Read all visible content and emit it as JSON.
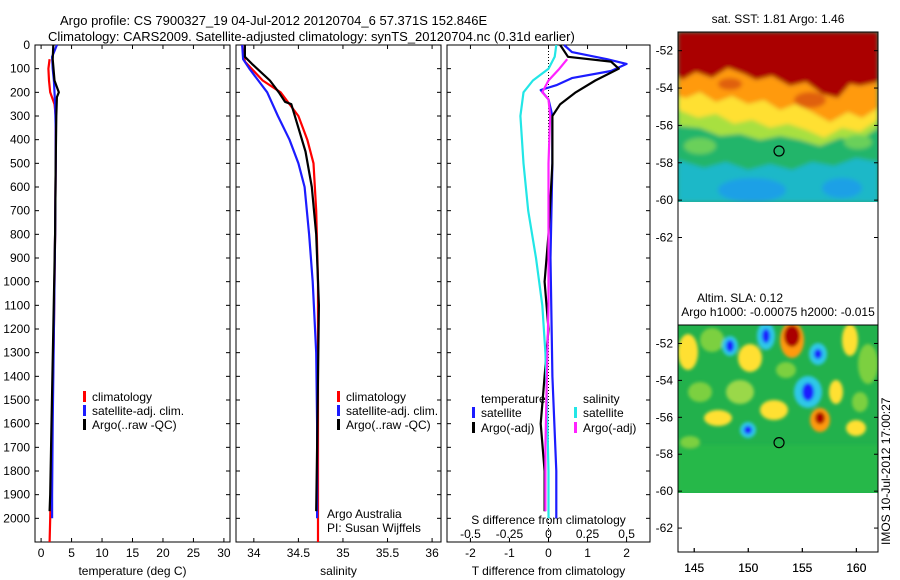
{
  "header": {
    "title_line1": "Argo profile: CS 7900327_19 04-Jul-2012 20120704_6 57.371S 152.846E",
    "title_line2": "Climatology: CARS2009. Satellite-adjusted climatology: synTS_20120704.nc (0.31d earlier)"
  },
  "colors": {
    "red": "#ff0000",
    "blue": "#1c1cff",
    "black": "#000000",
    "cyan": "#22e6e6",
    "magenta": "#ff22ff"
  },
  "chart_data": [
    {
      "id": "temperature",
      "type": "line",
      "xlabel": "temperature (deg C)",
      "ylabel": "",
      "xlim": [
        -1,
        31
      ],
      "ylim": [
        2100,
        0
      ],
      "xticks": [
        0,
        5,
        10,
        15,
        20,
        25,
        30
      ],
      "yticks": [
        0,
        100,
        200,
        300,
        400,
        500,
        600,
        700,
        800,
        900,
        1000,
        1100,
        1200,
        1300,
        1400,
        1500,
        1600,
        1700,
        1800,
        1900,
        2000
      ],
      "legend": [
        "climatology",
        "satellite-adj. clim.",
        "Argo(..raw -QC)"
      ],
      "series": [
        {
          "name": "climatology",
          "color": "red",
          "points": [
            [
              1.4,
              60
            ],
            [
              1.2,
              100
            ],
            [
              1.3,
              150
            ],
            [
              1.5,
              200
            ],
            [
              2.2,
              250
            ],
            [
              2.4,
              300
            ],
            [
              2.4,
              500
            ],
            [
              2.3,
              800
            ],
            [
              2.1,
              1200
            ],
            [
              1.8,
              1600
            ],
            [
              1.5,
              2000
            ],
            [
              1.4,
              2100
            ]
          ]
        },
        {
          "name": "satellite-adj. clim.",
          "color": "blue",
          "points": [
            [
              2.6,
              0
            ],
            [
              1.8,
              50
            ],
            [
              1.9,
              100
            ],
            [
              2.1,
              150
            ],
            [
              2.3,
              250
            ],
            [
              2.4,
              350
            ],
            [
              2.4,
              500
            ],
            [
              2.3,
              800
            ],
            [
              2.1,
              1200
            ],
            [
              1.9,
              1600
            ],
            [
              1.8,
              1900
            ],
            [
              1.8,
              2000
            ]
          ]
        },
        {
          "name": "Argo(..raw -QC)",
          "color": "black",
          "points": [
            [
              2.0,
              0
            ],
            [
              1.9,
              60
            ],
            [
              2.2,
              150
            ],
            [
              2.9,
              200
            ],
            [
              2.6,
              220
            ],
            [
              2.5,
              300
            ],
            [
              2.4,
              500
            ],
            [
              2.3,
              800
            ],
            [
              2.0,
              1200
            ],
            [
              1.7,
              1600
            ],
            [
              1.5,
              1900
            ],
            [
              1.4,
              1970
            ]
          ]
        }
      ]
    },
    {
      "id": "salinity",
      "type": "line",
      "xlabel": "salinity",
      "ylabel": "",
      "xlim": [
        33.8,
        36.1
      ],
      "ylim": [
        2100,
        0
      ],
      "xticks": [
        34,
        34.5,
        35,
        35.5,
        36
      ],
      "xticklabels": [
        "34",
        "34.5",
        "35",
        "35.5",
        "36"
      ],
      "legend": [
        "climatology",
        "satellite-adj. clim.",
        "Argo(..raw -QC)"
      ],
      "annotation": [
        "Argo Australia",
        "PI: Susan Wijffels"
      ],
      "series": [
        {
          "name": "climatology",
          "color": "red",
          "points": [
            [
              33.87,
              0
            ],
            [
              33.9,
              70
            ],
            [
              34.1,
              150
            ],
            [
              34.3,
              200
            ],
            [
              34.5,
              300
            ],
            [
              34.6,
              400
            ],
            [
              34.67,
              500
            ],
            [
              34.7,
              700
            ],
            [
              34.72,
              1000
            ],
            [
              34.72,
              1500
            ],
            [
              34.72,
              2100
            ]
          ]
        },
        {
          "name": "satellite-adj. clim.",
          "color": "blue",
          "points": [
            [
              33.87,
              0
            ],
            [
              33.88,
              60
            ],
            [
              33.95,
              100
            ],
            [
              34.05,
              150
            ],
            [
              34.15,
              200
            ],
            [
              34.27,
              300
            ],
            [
              34.4,
              400
            ],
            [
              34.5,
              500
            ],
            [
              34.57,
              600
            ],
            [
              34.62,
              800
            ],
            [
              34.66,
              1000
            ],
            [
              34.7,
              1300
            ],
            [
              34.71,
              1600
            ],
            [
              34.71,
              2000
            ]
          ]
        },
        {
          "name": "Argo(..raw -QC)",
          "color": "black",
          "points": [
            [
              33.9,
              0
            ],
            [
              33.9,
              50
            ],
            [
              33.98,
              80
            ],
            [
              34.18,
              150
            ],
            [
              34.28,
              200
            ],
            [
              34.35,
              240
            ],
            [
              34.42,
              250
            ],
            [
              34.5,
              350
            ],
            [
              34.58,
              450
            ],
            [
              34.65,
              600
            ],
            [
              34.7,
              800
            ],
            [
              34.73,
              1100
            ],
            [
              34.72,
              1400
            ],
            [
              34.71,
              1700
            ],
            [
              34.7,
              1970
            ]
          ]
        }
      ]
    },
    {
      "id": "difference",
      "type": "line",
      "xlabel": "T difference from climatology",
      "x2label": "S difference from climatology",
      "xlim": [
        -2.6,
        2.6
      ],
      "x2lim": [
        -0.65,
        0.65
      ],
      "ylim": [
        2100,
        0
      ],
      "xticks": [
        -2,
        -1,
        0,
        1,
        2
      ],
      "x2ticks": [
        -0.5,
        -0.25,
        0,
        0.25,
        0.5
      ],
      "x2ticklabels": [
        "-0.5",
        "-0.25",
        "0",
        "0.25",
        "0.5"
      ],
      "legend_temperature_title": "temperature",
      "legend_salinity_title": "salinity",
      "legend": [
        {
          "label": "satellite",
          "color": "blue"
        },
        {
          "label": "Argo(-adj)",
          "color": "black"
        },
        {
          "label": "satellite",
          "color": "cyan"
        },
        {
          "label": "Argo(-adj)",
          "color": "magenta"
        }
      ],
      "series": [
        {
          "name": "temperature satellite",
          "axis": "T",
          "color": "blue",
          "points": [
            [
              0.4,
              0
            ],
            [
              0.6,
              30
            ],
            [
              1.5,
              60
            ],
            [
              2.0,
              80
            ],
            [
              1.6,
              110
            ],
            [
              0.6,
              140
            ],
            [
              0.2,
              170
            ],
            [
              -0.2,
              190
            ],
            [
              0.0,
              230
            ],
            [
              0.1,
              300
            ],
            [
              0.1,
              500
            ],
            [
              0.05,
              900
            ],
            [
              0.1,
              1400
            ],
            [
              0.2,
              1800
            ],
            [
              0.2,
              2000
            ]
          ]
        },
        {
          "name": "temperature Argo(-adj)",
          "color": "black",
          "axis": "T",
          "points": [
            [
              0.3,
              0
            ],
            [
              0.5,
              50
            ],
            [
              1.6,
              70
            ],
            [
              1.8,
              100
            ],
            [
              1.2,
              150
            ],
            [
              0.7,
              200
            ],
            [
              0.3,
              250
            ],
            [
              0.1,
              300
            ],
            [
              0.1,
              500
            ],
            [
              0.0,
              800
            ],
            [
              -0.1,
              1000
            ],
            [
              0.0,
              1200
            ],
            [
              -0.1,
              1400
            ],
            [
              -0.2,
              1600
            ],
            [
              -0.1,
              1800
            ],
            [
              -0.1,
              1970
            ]
          ]
        },
        {
          "name": "salinity satellite",
          "color": "cyan",
          "axis": "S",
          "points": [
            [
              0.05,
              0
            ],
            [
              0.04,
              50
            ],
            [
              0.0,
              100
            ],
            [
              -0.1,
              150
            ],
            [
              -0.16,
              200
            ],
            [
              -0.18,
              300
            ],
            [
              -0.16,
              500
            ],
            [
              -0.13,
              700
            ],
            [
              -0.08,
              900
            ],
            [
              -0.04,
              1100
            ],
            [
              -0.02,
              1300
            ],
            [
              -0.01,
              1500
            ],
            [
              0.0,
              1800
            ],
            [
              0.0,
              2000
            ]
          ]
        },
        {
          "name": "salinity Argo(-adj)",
          "color": "magenta",
          "axis": "S",
          "points": [
            [
              0.12,
              60
            ],
            [
              0.07,
              100
            ],
            [
              0.0,
              150
            ],
            [
              -0.04,
              200
            ],
            [
              0.0,
              230
            ],
            [
              0.01,
              300
            ],
            [
              0.0,
              500
            ],
            [
              0.0,
              800
            ],
            [
              0.0,
              1100
            ],
            [
              -0.01,
              1400
            ],
            [
              -0.02,
              1700
            ],
            [
              -0.02,
              1970
            ]
          ]
        }
      ]
    },
    {
      "id": "sst-map",
      "type": "heatmap",
      "title": "sat. SST: 1.81 Argo: 1.46",
      "xlim": [
        143.5,
        162
      ],
      "ylim": [
        -64,
        -51
      ],
      "xticks": [
        145,
        150,
        155,
        160
      ],
      "yticks": [
        -52,
        -54,
        -56,
        -58,
        -60,
        -62
      ],
      "data_ylim": [
        -60.1,
        -51
      ],
      "marker": {
        "lon": 152.846,
        "lat": -57.371
      }
    },
    {
      "id": "sla-map",
      "type": "heatmap",
      "title_line1": "Altim. SLA: 0.12",
      "title_line2": "Argo h1000: -0.00075 h2000: -0.015",
      "xlim": [
        143.5,
        162
      ],
      "ylim": [
        -64,
        -51
      ],
      "xticks": [
        145,
        150,
        155,
        160
      ],
      "yticks": [
        -52,
        -54,
        -56,
        -58,
        -60,
        -62
      ],
      "data_ylim": [
        -60.1,
        -51
      ],
      "marker": {
        "lon": 152.846,
        "lat": -57.371
      }
    }
  ],
  "footer": {
    "stamp": "IMOS 10-Jul-2012 17:00:27"
  }
}
